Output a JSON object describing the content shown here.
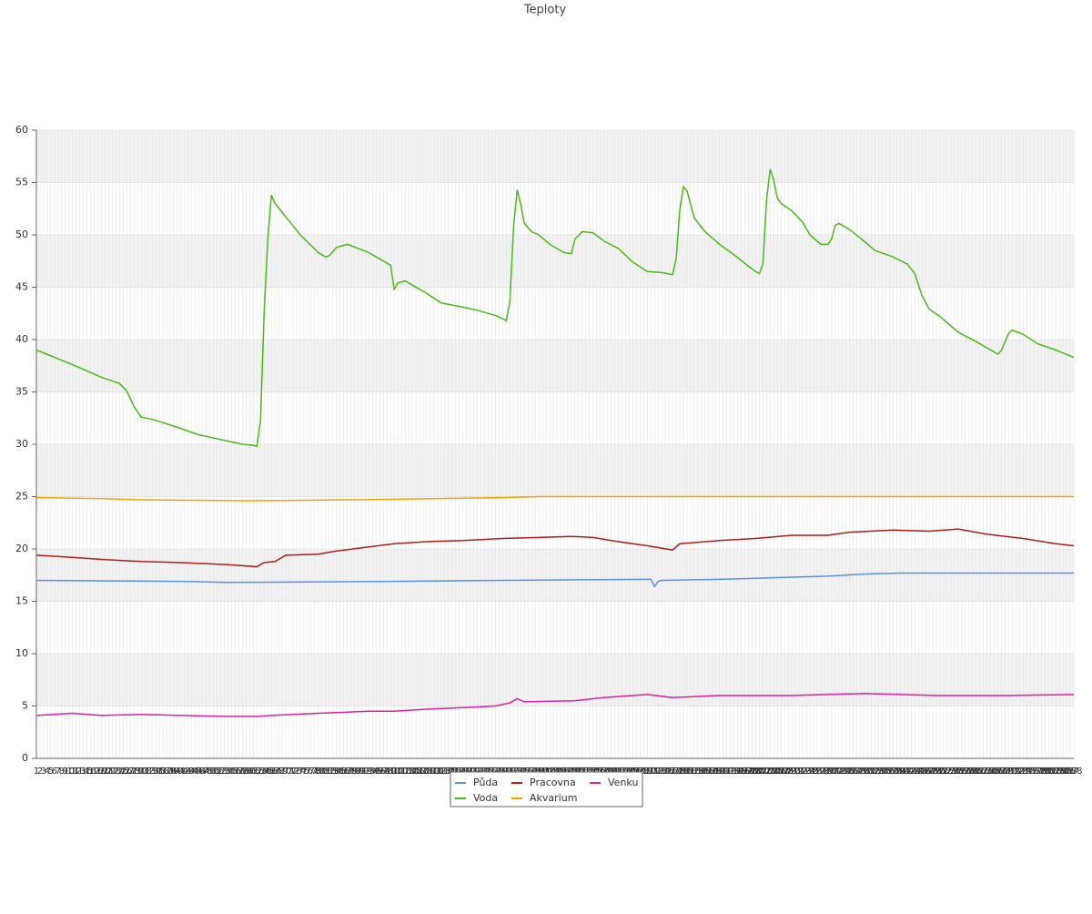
{
  "chart_data": {
    "type": "line",
    "title": "Teploty",
    "xlim": [
      1,
      288
    ],
    "ylim": [
      0,
      60
    ],
    "yticks": [
      0,
      5,
      10,
      15,
      20,
      25,
      30,
      35,
      40,
      45,
      50,
      55,
      60
    ],
    "xticks": [
      1,
      2,
      3,
      4,
      5,
      6,
      7,
      8,
      9,
      10,
      11,
      12,
      13,
      14,
      15,
      16,
      17,
      18,
      19,
      20,
      21,
      22,
      23,
      24,
      25,
      26,
      27,
      28,
      29,
      30,
      31,
      32,
      33,
      34,
      35,
      36,
      37,
      38,
      39,
      40,
      41,
      42,
      43,
      44,
      45,
      46,
      47,
      48,
      49,
      50,
      51,
      52,
      53,
      54,
      55,
      56,
      57,
      58,
      59,
      60,
      61,
      62,
      63,
      64,
      65,
      66,
      67,
      68,
      69,
      70,
      71,
      72,
      73,
      74,
      75,
      76,
      77,
      78,
      79,
      80,
      81,
      82,
      83,
      84,
      85,
      86,
      87,
      88,
      89,
      90,
      91,
      92,
      93,
      94,
      95,
      96,
      97,
      98,
      99,
      100,
      101,
      102,
      103,
      104,
      105,
      106,
      107,
      108,
      109,
      110,
      111,
      112,
      113,
      114,
      115,
      116,
      117,
      118,
      119,
      120,
      121,
      122,
      123,
      124,
      125,
      126,
      127,
      128,
      129,
      130,
      131,
      132,
      133,
      134,
      135,
      136,
      137,
      138,
      139,
      140,
      141,
      142,
      143,
      144,
      145,
      146,
      147,
      148,
      149,
      150,
      151,
      152,
      153,
      154,
      155,
      156,
      157,
      158,
      159,
      160,
      161,
      162,
      163,
      164,
      165,
      166,
      167,
      168,
      169,
      170,
      171,
      172,
      173,
      174,
      175,
      176,
      177,
      178,
      179,
      180,
      181,
      182,
      183,
      184,
      185,
      186,
      187,
      188,
      189,
      190,
      191,
      192,
      193,
      194,
      195,
      196,
      197,
      198,
      199,
      200,
      201,
      202,
      203,
      204,
      205,
      206,
      207,
      208,
      209,
      210,
      211,
      212,
      213,
      214,
      215,
      216,
      217,
      218,
      219,
      220,
      221,
      222,
      223,
      224,
      225,
      226,
      227,
      228,
      229,
      230,
      231,
      232,
      233,
      234,
      235,
      236,
      237,
      238,
      239,
      240,
      241,
      242,
      243,
      244,
      245,
      246,
      247,
      248,
      249,
      250,
      251,
      252,
      253,
      254,
      255,
      256,
      257,
      258,
      259,
      260,
      261,
      262,
      263,
      264,
      265,
      266,
      267,
      268,
      269,
      270,
      271,
      272,
      273,
      274,
      275,
      276,
      277,
      278,
      279,
      280,
      281,
      282,
      283,
      284,
      285,
      286,
      287,
      288
    ],
    "grid": true,
    "alternate_bands": true,
    "legend_position": "bottom",
    "series": [
      {
        "name": "Půda",
        "color": "#5b8fe6",
        "x": [
          1,
          41,
          54,
          100,
          130,
          170,
          171,
          172,
          173,
          174,
          190,
          200,
          210,
          220,
          230,
          240,
          288
        ],
        "values": [
          17.0,
          16.9,
          16.8,
          16.9,
          17.0,
          17.1,
          17.1,
          16.4,
          16.9,
          17.0,
          17.1,
          17.2,
          17.3,
          17.4,
          17.6,
          17.7,
          17.7
        ]
      },
      {
        "name": "Voda",
        "color": "#4cb81c",
        "x": [
          1,
          11,
          19,
          24,
          26,
          28,
          30,
          34,
          41,
          46,
          54,
          58,
          61,
          62,
          63,
          64,
          65,
          66,
          67,
          71,
          74,
          79,
          81,
          82,
          84,
          87,
          93,
          99,
          100,
          101,
          103,
          109,
          113,
          119,
          123,
          128,
          130,
          131,
          132,
          133,
          134,
          135,
          136,
          138,
          140,
          143,
          147,
          149,
          150,
          152,
          155,
          158,
          162,
          166,
          170,
          174,
          177,
          178,
          179,
          180,
          181,
          183,
          186,
          190,
          194,
          198,
          200,
          201,
          202,
          203,
          204,
          205,
          206,
          207,
          210,
          213,
          215,
          218,
          220,
          221,
          222,
          223,
          226,
          230,
          233,
          238,
          242,
          244,
          246,
          248,
          251,
          256,
          261,
          264,
          267,
          268,
          270,
          271,
          274,
          278,
          283,
          288
        ],
        "values": [
          39.0,
          37.6,
          36.4,
          35.8,
          35.1,
          33.6,
          32.6,
          32.3,
          31.5,
          30.9,
          30.3,
          30.0,
          29.9,
          29.8,
          32.3,
          42.5,
          49.5,
          53.8,
          53.0,
          51.3,
          50.0,
          48.3,
          47.9,
          48.0,
          48.8,
          49.1,
          48.3,
          47.1,
          44.8,
          45.4,
          45.6,
          44.4,
          43.5,
          43.1,
          42.8,
          42.3,
          42.0,
          41.8,
          43.7,
          50.7,
          54.3,
          52.9,
          51.1,
          50.3,
          50.0,
          49.1,
          48.3,
          48.2,
          49.6,
          50.3,
          50.2,
          49.4,
          48.7,
          47.4,
          46.5,
          46.4,
          46.2,
          47.7,
          52.4,
          54.6,
          54.2,
          51.6,
          50.3,
          49.1,
          48.1,
          47.0,
          46.5,
          46.3,
          47.2,
          53.3,
          56.3,
          55.2,
          53.5,
          53.0,
          52.3,
          51.2,
          50.0,
          49.1,
          49.1,
          49.6,
          50.9,
          51.1,
          50.5,
          49.4,
          48.5,
          47.9,
          47.2,
          46.3,
          44.2,
          42.9,
          42.2,
          40.7,
          39.8,
          39.2,
          38.6,
          39.0,
          40.6,
          40.9,
          40.5,
          39.6,
          39.0,
          38.3
        ]
      },
      {
        "name": "Pracovna",
        "color": "#b01c1c",
        "x": [
          1,
          11,
          19,
          30,
          41,
          54,
          62,
          64,
          67,
          70,
          79,
          84,
          93,
          100,
          109,
          119,
          130,
          140,
          149,
          155,
          162,
          170,
          177,
          179,
          190,
          200,
          210,
          220,
          226,
          238,
          248,
          256,
          264,
          274,
          283,
          288
        ],
        "values": [
          19.4,
          19.2,
          19.0,
          18.8,
          18.7,
          18.5,
          18.3,
          18.7,
          18.8,
          19.4,
          19.5,
          19.8,
          20.2,
          20.5,
          20.7,
          20.8,
          21.0,
          21.1,
          21.2,
          21.1,
          20.7,
          20.3,
          19.9,
          20.5,
          20.8,
          21.0,
          21.3,
          21.3,
          21.6,
          21.8,
          21.7,
          21.9,
          21.4,
          21.0,
          20.5,
          20.3
        ]
      },
      {
        "name": "Akvarium",
        "color": "#f5a300",
        "x": [
          1,
          20,
          30,
          60,
          90,
          110,
          130,
          140,
          288
        ],
        "values": [
          24.9,
          24.8,
          24.7,
          24.6,
          24.7,
          24.8,
          24.9,
          25.0,
          25.0
        ]
      },
      {
        "name": "Venku",
        "color": "#e0209a",
        "x": [
          1,
          11,
          19,
          30,
          41,
          54,
          62,
          66,
          79,
          93,
          100,
          109,
          123,
          128,
          132,
          134,
          136,
          150,
          158,
          170,
          177,
          190,
          210,
          220,
          230,
          250,
          270,
          288
        ],
        "values": [
          4.1,
          4.3,
          4.1,
          4.2,
          4.1,
          4.0,
          4.0,
          4.1,
          4.3,
          4.5,
          4.5,
          4.7,
          4.9,
          5.0,
          5.3,
          5.7,
          5.4,
          5.5,
          5.8,
          6.1,
          5.8,
          6.0,
          6.0,
          6.1,
          6.2,
          6.0,
          6.0,
          6.1
        ]
      }
    ]
  }
}
